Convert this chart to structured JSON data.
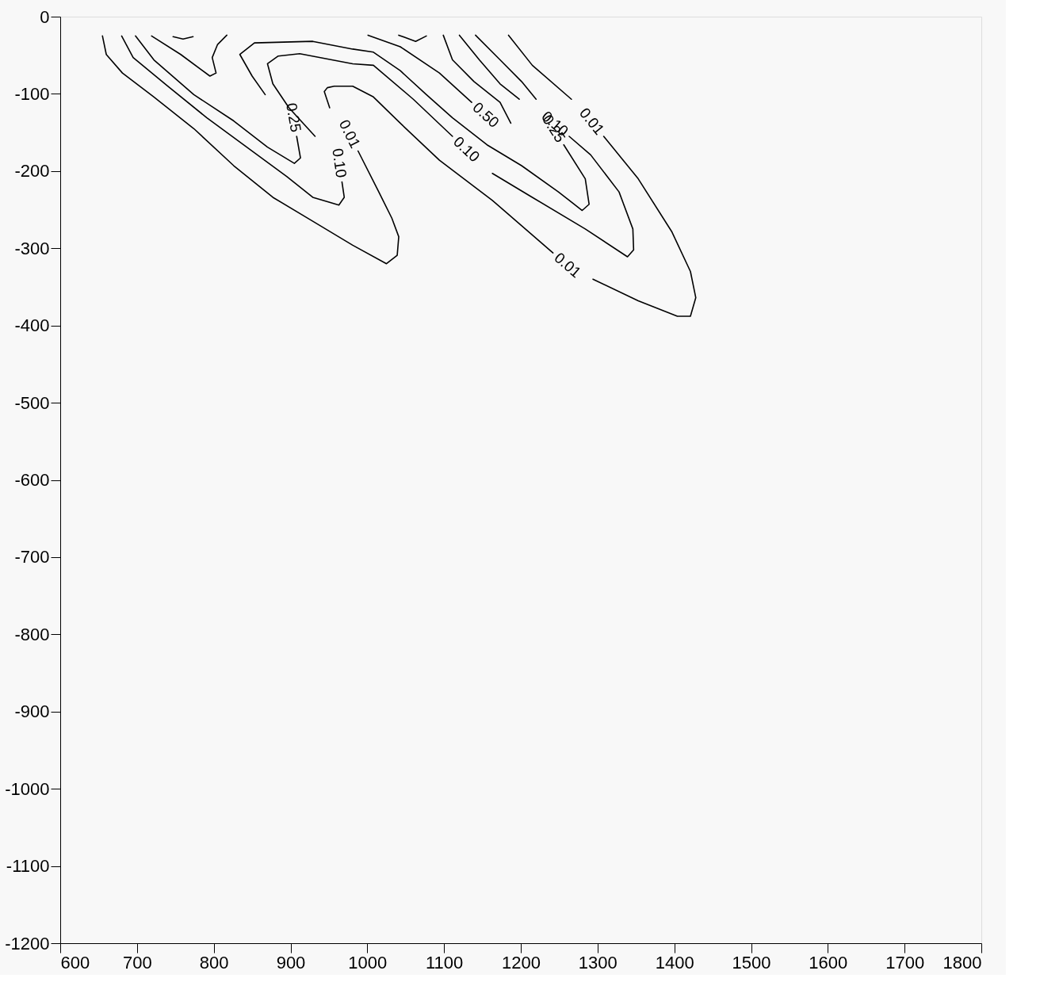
{
  "chart_data": {
    "type": "line",
    "xlim": [
      600,
      1800
    ],
    "ylim": [
      -1200,
      0
    ],
    "xticks": [
      600,
      700,
      800,
      900,
      1000,
      1100,
      1200,
      1300,
      1400,
      1500,
      1600,
      1700,
      1800
    ],
    "yticks": [
      0,
      -100,
      -200,
      -300,
      -400,
      -500,
      -600,
      -700,
      -800,
      -900,
      -1000,
      -1100,
      -1200
    ],
    "grid": false,
    "legend": false,
    "line_style": "solid",
    "marker": "none",
    "series": [
      {
        "name": "0.01",
        "color": "#000000",
        "x": [
          655,
          660,
          681,
          722,
          774,
          826,
          877,
          929,
          981,
          1025,
          1039,
          1041,
          1032,
          1015,
          988
        ],
        "values": [
          -25,
          -49,
          -73,
          -104,
          -145,
          -193,
          -234,
          -265,
          -296,
          -320,
          -309,
          -285,
          -261,
          -227,
          -174
        ]
      },
      {
        "name": "0.01",
        "color": "#000000",
        "x": [
          951,
          944,
          948,
          957,
          981,
          1008,
          1043,
          1094,
          1163,
          1242
        ],
        "values": [
          -118,
          -97,
          -92,
          -90,
          -90,
          -104,
          -138,
          -186,
          -238,
          -306
        ]
      },
      {
        "name": "0.01",
        "color": "#000000",
        "x": [
          1294,
          1353,
          1404,
          1421,
          1428,
          1421,
          1397,
          1353,
          1308
        ],
        "values": [
          -340,
          -368,
          -388,
          -388,
          -364,
          -330,
          -279,
          -210,
          -155
        ]
      },
      {
        "color": "#000000",
        "x": [
          1266,
          1215,
          1184
        ],
        "values": [
          -107,
          -63,
          -24
        ]
      },
      {
        "name": "0.10",
        "color": "#000000",
        "x": [
          680,
          695,
          740,
          791,
          843,
          895,
          929,
          963,
          970,
          967
        ],
        "values": [
          -25,
          -53,
          -90,
          -131,
          -169,
          -207,
          -234,
          -244,
          -234,
          -214
        ]
      },
      {
        "name": "0.10",
        "color": "#000000",
        "x": [
          932,
          898,
          877,
          870,
          884,
          912,
          981,
          1008,
          1060,
          1111
        ],
        "values": [
          -155,
          -118,
          -87,
          -61,
          -51,
          -48,
          -61,
          -63,
          -107,
          -155
        ]
      },
      {
        "name": "0.10",
        "color": "#000000",
        "x": [
          1163,
          1215,
          1284,
          1339,
          1347,
          1346,
          1328,
          1291,
          1263
        ],
        "values": [
          -203,
          -234,
          -275,
          -311,
          -302,
          -275,
          -227,
          -179,
          -155
        ]
      },
      {
        "color": "#000000",
        "x": [
          1220,
          1201,
          1173,
          1141
        ],
        "values": [
          -107,
          -84,
          -56,
          -24
        ]
      },
      {
        "name": "0.25",
        "color": "#000000",
        "x": [
          698,
          722,
          774,
          826,
          870,
          905,
          913,
          908
        ],
        "values": [
          -25,
          -56,
          -101,
          -135,
          -169,
          -190,
          -183,
          -155
        ]
      },
      {
        "name": "0.25",
        "color": "#000000",
        "x": [
          867,
          850,
          834,
          853,
          929,
          981,
          1008,
          1043,
          1077,
          1111,
          1156,
          1201,
          1249,
          1280,
          1289,
          1284,
          1256
        ],
        "values": [
          -101,
          -77,
          -49,
          -34,
          -32,
          -42,
          -46,
          -70,
          -101,
          -131,
          -166,
          -193,
          -227,
          -251,
          -243,
          -210,
          -166
        ]
      },
      {
        "color": "#000000",
        "x": [
          1198,
          1173,
          1146,
          1120
        ],
        "values": [
          -107,
          -87,
          -56,
          -24
        ]
      },
      {
        "color": "#000000",
        "x": [
          719,
          757,
          795,
          803,
          798,
          805,
          817
        ],
        "values": [
          -25,
          -49,
          -77,
          -73,
          -53,
          -36,
          -24
        ]
      },
      {
        "name": "0.50",
        "color": "#000000",
        "x": [
          1001,
          1043,
          1094,
          1136
        ],
        "values": [
          -24,
          -39,
          -73,
          -111
        ]
      },
      {
        "color": "#000000",
        "x": [
          1187,
          1173,
          1139,
          1111,
          1099
        ],
        "values": [
          -138,
          -111,
          -84,
          -56,
          -24
        ]
      },
      {
        "color": "#000000",
        "x": [
          747,
          760,
          773
        ],
        "values": [
          -26,
          -29,
          -26
        ]
      },
      {
        "color": "#000000",
        "x": [
          1041,
          1063,
          1077
        ],
        "values": [
          -24,
          -32,
          -25
        ]
      }
    ]
  }
}
